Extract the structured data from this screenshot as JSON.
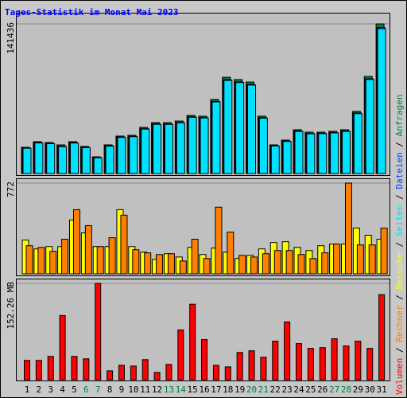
{
  "chart_data": [
    {
      "type": "bar",
      "title": "Tages-Statistik im Monat Mai 2023",
      "ylim": [
        0,
        141436
      ],
      "yticks": [
        141436
      ],
      "series": [
        {
          "name": "Anfragen",
          "color": "#008040",
          "values": [
            24800,
            30100,
            29300,
            27100,
            30100,
            25600,
            15800,
            27100,
            35400,
            36100,
            43600,
            48100,
            48100,
            49600,
            54900,
            54200,
            70000,
            91000,
            88800,
            86500,
            54200,
            27100,
            31600,
            41400,
            39100,
            39100,
            39900,
            41400,
            58700,
            91800,
            141436
          ]
        },
        {
          "name": "Dateien",
          "color": "#0040ff",
          "values": [
            24100,
            29300,
            28500,
            25900,
            29200,
            24800,
            15200,
            26300,
            34500,
            35200,
            42400,
            46900,
            46800,
            48300,
            53600,
            52900,
            68200,
            88700,
            86600,
            84300,
            52800,
            26300,
            30700,
            40300,
            38000,
            38100,
            38800,
            40300,
            57200,
            89500,
            138000
          ]
        },
        {
          "name": "Seiten",
          "color": "#00e0ff",
          "values": [
            23900,
            28900,
            28200,
            25400,
            28800,
            24500,
            14900,
            25900,
            34100,
            34800,
            42000,
            46500,
            46400,
            47900,
            53100,
            52500,
            67700,
            88000,
            86000,
            83600,
            52300,
            26000,
            30300,
            39800,
            37600,
            37700,
            38400,
            39800,
            56600,
            88900,
            136900
          ]
        }
      ]
    },
    {
      "type": "bar",
      "ylim": [
        0,
        772
      ],
      "yticks": [
        772
      ],
      "series": [
        {
          "name": "Besuche",
          "color": "#ffff00",
          "values": [
            287,
            212,
            232,
            232,
            458,
            348,
            232,
            232,
            546,
            232,
            184,
            123,
            171,
            143,
            225,
            164,
            219,
            184,
            130,
            157,
            212,
            266,
            273,
            225,
            198,
            239,
            253,
            253,
            389,
            328,
            294
          ]
        },
        {
          "name": "Rechner",
          "color": "#ff8000",
          "values": [
            239,
            225,
            191,
            294,
            546,
            410,
            232,
            307,
            499,
            205,
            178,
            164,
            171,
            109,
            294,
            130,
            567,
            355,
            157,
            143,
            171,
            198,
            198,
            164,
            130,
            178,
            253,
            772,
            246,
            246,
            389
          ]
        }
      ]
    },
    {
      "type": "bar",
      "ylim": [
        0,
        152.26
      ],
      "yticks": [
        {
          "value": 152.26,
          "label": "152.26 MB"
        }
      ],
      "categories": [
        "1",
        "2",
        "3",
        "4",
        "5",
        "6",
        "7",
        "8",
        "9",
        "10",
        "11",
        "12",
        "13",
        "14",
        "15",
        "16",
        "17",
        "18",
        "19",
        "20",
        "21",
        "22",
        "23",
        "24",
        "25",
        "26",
        "27",
        "28",
        "29",
        "30",
        "31"
      ],
      "highlight_indices": [
        5,
        6,
        12,
        13,
        19,
        20,
        26,
        27
      ],
      "highlight_color": "#008040",
      "series": [
        {
          "name": "Volumen",
          "color": "#ff0000",
          "values": [
            30.5,
            30.5,
            36.8,
            101.5,
            36.8,
            33,
            152.26,
            14,
            22.8,
            21.6,
            31.7,
            11.4,
            24.1,
            78.7,
            119.3,
            63.4,
            22.8,
            20.3,
            43.1,
            45.7,
            35.5,
            60.9,
            91.3,
            57.1,
            49.5,
            50.7,
            64.7,
            53.3,
            60.9,
            49.5,
            134.5
          ]
        }
      ]
    }
  ],
  "legend_separator": "/"
}
